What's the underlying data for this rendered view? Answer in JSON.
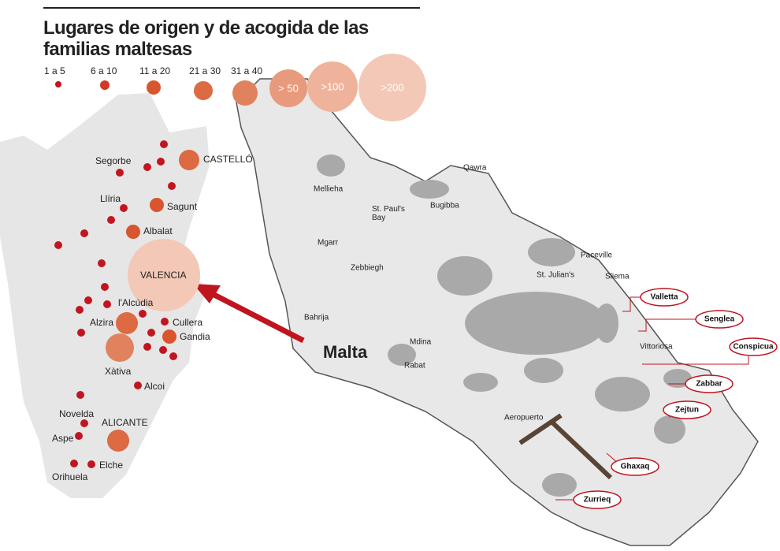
{
  "title": "Lugares de origen y de acogida de las familias maltesas",
  "legend": [
    "1 a 5",
    "6 a 10",
    "11 a 20",
    "21 a 30",
    "31 a 40",
    "> 50",
    ">100",
    ">200"
  ],
  "valencia_places": [
    "CASTELLÓ",
    "Segorbe",
    "Llíria",
    "Sagunt",
    "Albalat",
    "VALENCIA",
    "l'Alcúdia",
    "Alzira",
    "Cullera",
    "Gandia",
    "Xàtiva",
    "Alcoi",
    "Novelda",
    "ALICANTE",
    "Aspe",
    "Elche",
    "Orihuela"
  ],
  "malta_title": "Malta",
  "malta_places": [
    "Qawra",
    "Mellieha",
    "St. Paul's Bay",
    "Bugibba",
    "Mgarr",
    "Zebbiegh",
    "Paceville",
    "St. Julian's",
    "Sliema",
    "Bahrija",
    "Mdina",
    "Rabat",
    "Vittoriosa",
    "Aeropuerto"
  ],
  "highlighted": [
    "Valletta",
    "Senglea",
    "Conspicua",
    "Zabbar",
    "Zejtun",
    "Ghaxaq",
    "Zurrieq"
  ]
}
